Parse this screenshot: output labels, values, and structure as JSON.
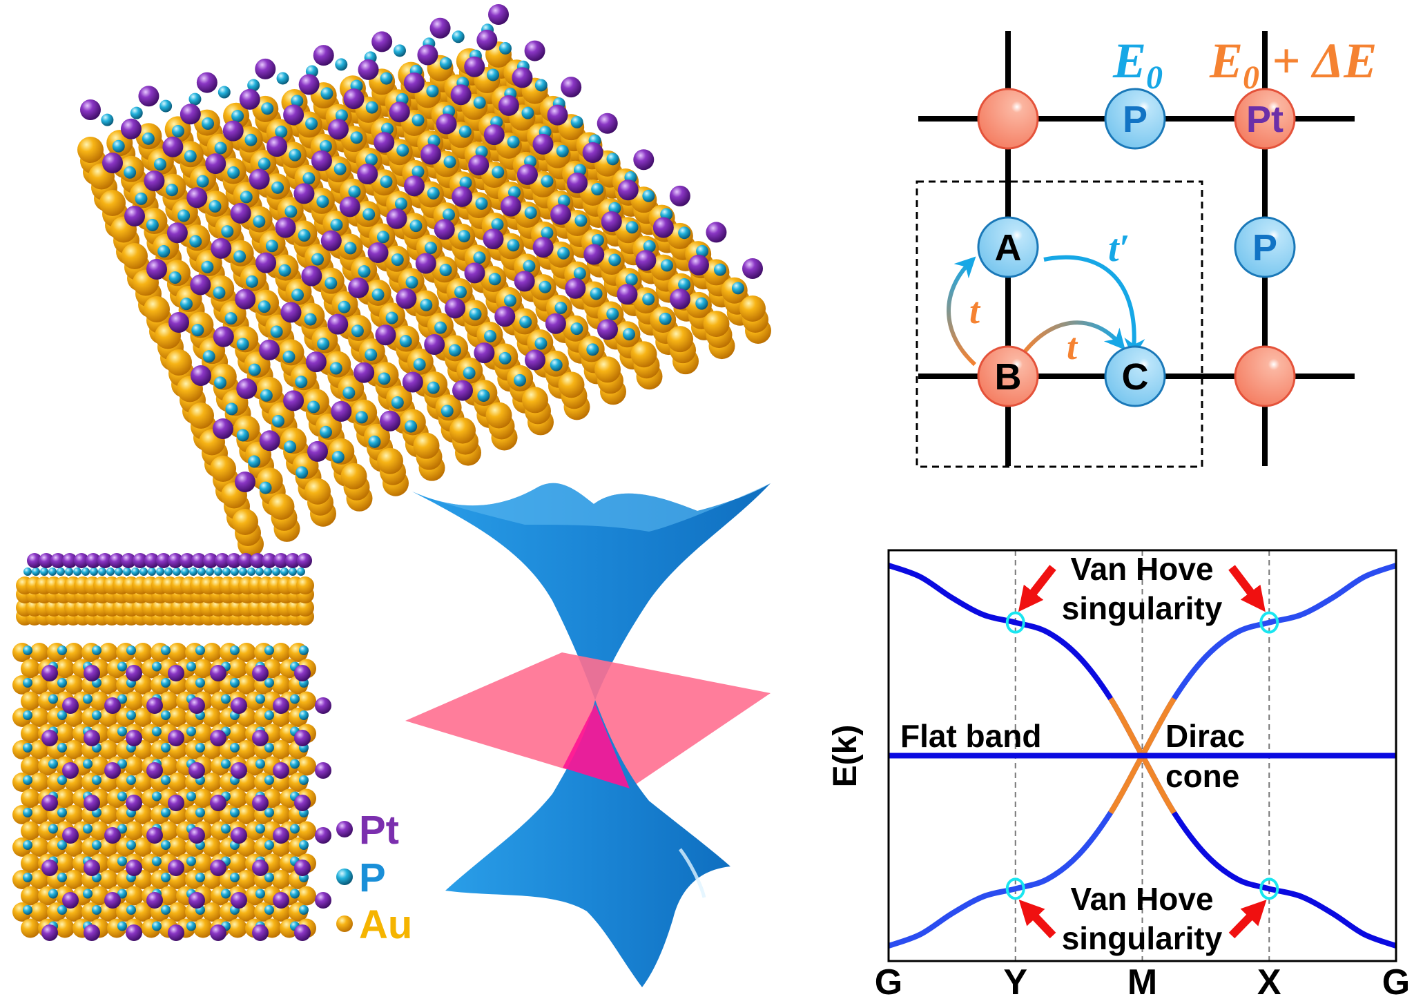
{
  "structure": {
    "legend": [
      {
        "label": "Pt",
        "color": "#7b2fae"
      },
      {
        "label": "P",
        "color": "#1a8fd8"
      },
      {
        "label": "Au",
        "color": "#f5b400"
      }
    ],
    "atom_colors": {
      "pt": "#7b2fae",
      "p": "#2ab4e0",
      "au": "#f0a20a"
    }
  },
  "dirac_cone": {
    "cone_color": "#1e88d8",
    "plane_color": "#ff6f90",
    "overlap_color": "#ff1493"
  },
  "lattice": {
    "onsite_p_label_main": "E",
    "onsite_p_label_sub": "0",
    "onsite_pt_label_main": "E",
    "onsite_pt_label_sub": "0",
    "onsite_pt_label_tail": " + ΔE",
    "sites": {
      "top_left": "",
      "top_mid": "P",
      "top_right": "Pt",
      "a": "A",
      "mid_right": "P",
      "b": "B",
      "c": "C",
      "bottom_right": ""
    },
    "hopping_t_left": "t",
    "hopping_t_bottom": "t",
    "hopping_t_prime": "t′",
    "colors": {
      "pt_site": "#f98a70",
      "p_site": "#8ed0f3",
      "e0": "#16a7e6",
      "delta": "#f58231",
      "pt_text": "#6b2fa8",
      "p_text": "#1273c4"
    }
  },
  "chart_data": {
    "type": "line",
    "xlabel": "",
    "ylabel": "E(k)",
    "categories": [
      "G",
      "Y",
      "M",
      "X",
      "G"
    ],
    "xlim": [
      0,
      4
    ],
    "ylim": [
      -1.08,
      1.08
    ],
    "grid": "dashed vertical lines at Y, M, X",
    "x": [
      0,
      0.25,
      0.5,
      0.75,
      1,
      1.25,
      1.5,
      1.75,
      2,
      2.25,
      2.5,
      2.75,
      3,
      3.25,
      3.5,
      3.75,
      4
    ],
    "series": [
      {
        "values": [
          1,
          0.94,
          0.83,
          0.74,
          0.7,
          0.65,
          0.52,
          0.3,
          0,
          -0.3,
          -0.52,
          -0.65,
          -0.7,
          -0.74,
          -0.83,
          -0.94,
          -1
        ],
        "color": "#0a0ae0"
      },
      {
        "values": [
          -1,
          -0.94,
          -0.83,
          -0.74,
          -0.7,
          -0.65,
          -0.52,
          -0.3,
          0,
          0.3,
          0.52,
          0.65,
          0.7,
          0.74,
          0.83,
          0.94,
          1
        ],
        "color": "#2a4cf0"
      },
      {
        "values": [
          0,
          0,
          0,
          0,
          0,
          0,
          0,
          0,
          0,
          0,
          0,
          0,
          0,
          0,
          0,
          0,
          0
        ],
        "color": "#0a0ae0"
      }
    ],
    "dirac_highlight": {
      "x_range": [
        1.75,
        2.25
      ],
      "color": "#f0862a"
    },
    "van_hove_points": [
      {
        "x": 1,
        "y": 0.7
      },
      {
        "x": 3,
        "y": 0.7
      },
      {
        "x": 1,
        "y": -0.7
      },
      {
        "x": 3,
        "y": -0.7
      }
    ],
    "annotations": {
      "van_hove_top_1": "Van Hove",
      "van_hove_top_2": "singularity",
      "van_hove_bottom_1": "Van Hove",
      "van_hove_bottom_2": "singularity",
      "flat_band": "Flat band",
      "dirac_1": "Dirac",
      "dirac_2": "cone"
    },
    "marker_color": "#19e6f0",
    "arrow_color": "#f01010"
  }
}
